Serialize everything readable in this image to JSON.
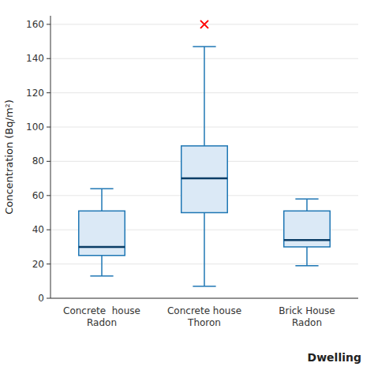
{
  "chart_data": {
    "type": "box",
    "categories": [
      "Concrete  house\nRadon",
      "Concrete house\nThoron",
      "Brick House\nRadon"
    ],
    "boxes": [
      {
        "whislo": 13,
        "q1": 25,
        "med": 30,
        "q3": 51,
        "whishi": 64,
        "fliers": []
      },
      {
        "whislo": 7,
        "q1": 50,
        "med": 70,
        "q3": 89,
        "whishi": 147,
        "fliers": [
          160
        ]
      },
      {
        "whislo": 19,
        "q1": 30,
        "med": 34,
        "q3": 51,
        "whishi": 58,
        "fliers": []
      }
    ],
    "ylabel": "Concentration (Bq/m²)",
    "xlabel": "Dwelling",
    "ylim": [
      0,
      165
    ],
    "yticks": [
      0,
      20,
      40,
      60,
      80,
      100,
      120,
      140,
      160
    ],
    "color": "red",
    "marker": "x"
  }
}
